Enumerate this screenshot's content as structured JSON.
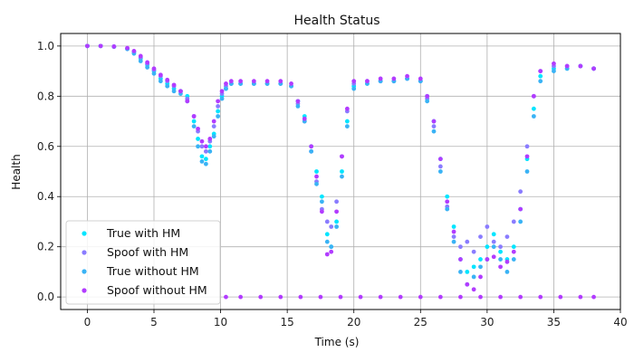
{
  "chart_data": {
    "type": "scatter",
    "title": "Health Status",
    "xlabel": "Time (s)",
    "ylabel": "Health",
    "xlim": [
      -2,
      40
    ],
    "ylim": [
      -0.05,
      1.05
    ],
    "xticks": [
      0,
      5,
      10,
      15,
      20,
      25,
      30,
      35,
      40
    ],
    "yticks": [
      0.0,
      0.2,
      0.4,
      0.6,
      0.8,
      1.0
    ],
    "xtick_labels": [
      "0",
      "5",
      "10",
      "15",
      "20",
      "25",
      "30",
      "35",
      "40"
    ],
    "ytick_labels": [
      "0.0",
      "0.2",
      "0.4",
      "0.6",
      "0.8",
      "1.0"
    ],
    "grid": true,
    "legend_position": "lower-left",
    "series": [
      {
        "name": "True with HM",
        "color": "#00e5ff",
        "x": [
          0,
          1,
          2,
          3,
          3.5,
          4,
          4.5,
          5,
          5.5,
          6,
          6.5,
          7,
          7.5,
          8,
          8.3,
          8.6,
          8.9,
          9.2,
          9.5,
          9.8,
          10.1,
          10.4,
          10.8,
          11.5,
          12.5,
          13.5,
          14.5,
          15.3,
          15.8,
          16.3,
          16.8,
          17.2,
          17.6,
          18.0,
          18.3,
          18.7,
          19.1,
          19.5,
          20,
          21,
          22,
          23,
          24,
          25,
          25.5,
          26,
          26.5,
          27,
          27.5,
          28,
          28.5,
          29,
          29.5,
          30,
          30.5,
          31,
          31.5,
          32,
          32.5,
          33,
          33.5,
          34,
          35,
          36,
          37,
          38
        ],
        "y": [
          1.0,
          1.0,
          0.998,
          0.99,
          0.975,
          0.95,
          0.925,
          0.9,
          0.87,
          0.85,
          0.83,
          0.82,
          0.8,
          0.7,
          0.63,
          0.56,
          0.55,
          0.6,
          0.65,
          0.74,
          0.8,
          0.83,
          0.85,
          0.85,
          0.85,
          0.85,
          0.85,
          0.84,
          0.78,
          0.72,
          0.6,
          0.5,
          0.4,
          0.25,
          0.2,
          0.3,
          0.5,
          0.7,
          0.84,
          0.85,
          0.86,
          0.86,
          0.87,
          0.86,
          0.8,
          0.7,
          0.55,
          0.4,
          0.28,
          0.15,
          0.1,
          0.12,
          0.15,
          0.2,
          0.25,
          0.18,
          0.15,
          0.2,
          0.35,
          0.55,
          0.75,
          0.88,
          0.91,
          0.91,
          0.92,
          0.91
        ]
      },
      {
        "name": "Spoof with HM",
        "color": "#8a7cff",
        "x": [
          0,
          1,
          2,
          3,
          3.5,
          4,
          4.5,
          5,
          5.5,
          6,
          6.5,
          7,
          7.5,
          8,
          8.3,
          8.6,
          8.9,
          9.2,
          9.5,
          9.8,
          10.1,
          10.4,
          10.8,
          11.5,
          12.5,
          13.5,
          14.5,
          15.3,
          15.8,
          16.3,
          16.8,
          17.2,
          17.6,
          18.0,
          18.3,
          18.7,
          19.1,
          19.5,
          20,
          21,
          22,
          23,
          24,
          25,
          25.5,
          26,
          26.5,
          27,
          27.5,
          28,
          28.5,
          29,
          29.5,
          30,
          30.5,
          31,
          31.5,
          32,
          32.5,
          33,
          33.5,
          34,
          35,
          36,
          37,
          38
        ],
        "y": [
          1.0,
          1.0,
          0.998,
          0.99,
          0.978,
          0.955,
          0.93,
          0.905,
          0.88,
          0.86,
          0.84,
          0.82,
          0.79,
          0.72,
          0.66,
          0.6,
          0.58,
          0.62,
          0.68,
          0.76,
          0.81,
          0.84,
          0.85,
          0.85,
          0.85,
          0.85,
          0.85,
          0.84,
          0.77,
          0.7,
          0.58,
          0.46,
          0.35,
          0.3,
          0.28,
          0.38,
          0.56,
          0.74,
          0.85,
          0.86,
          0.86,
          0.86,
          0.87,
          0.86,
          0.79,
          0.68,
          0.52,
          0.36,
          0.24,
          0.2,
          0.22,
          0.18,
          0.24,
          0.28,
          0.22,
          0.2,
          0.24,
          0.3,
          0.42,
          0.6,
          0.8,
          0.9,
          0.92,
          0.92,
          0.92,
          0.91
        ]
      },
      {
        "name": "True without HM",
        "color": "#3ab3f5",
        "x": [
          0,
          1,
          2,
          3,
          3.5,
          4,
          4.5,
          5,
          5.5,
          6,
          6.5,
          7,
          7.5,
          8,
          8.3,
          8.6,
          8.9,
          9.2,
          9.5,
          9.8,
          10.1,
          10.4,
          10.8,
          11.5,
          12.5,
          13.5,
          14.5,
          15.3,
          15.8,
          16.3,
          16.8,
          17.2,
          17.6,
          18.0,
          18.3,
          18.7,
          19.1,
          19.5,
          20,
          21,
          22,
          23,
          24,
          25,
          25.5,
          26,
          26.5,
          27,
          27.5,
          28,
          28.5,
          29,
          29.5,
          30,
          30.5,
          31,
          31.5,
          32,
          32.5,
          33,
          33.5,
          34,
          35,
          36,
          37,
          38
        ],
        "y": [
          1.0,
          1.0,
          0.997,
          0.988,
          0.97,
          0.94,
          0.915,
          0.89,
          0.86,
          0.84,
          0.82,
          0.81,
          0.78,
          0.68,
          0.6,
          0.54,
          0.53,
          0.58,
          0.64,
          0.72,
          0.79,
          0.83,
          0.85,
          0.85,
          0.85,
          0.85,
          0.85,
          0.84,
          0.76,
          0.7,
          0.58,
          0.45,
          0.38,
          0.22,
          0.2,
          0.28,
          0.48,
          0.68,
          0.83,
          0.85,
          0.86,
          0.86,
          0.87,
          0.86,
          0.78,
          0.66,
          0.5,
          0.35,
          0.22,
          0.1,
          0.05,
          0.08,
          0.12,
          0.15,
          0.2,
          0.15,
          0.1,
          0.15,
          0.3,
          0.5,
          0.72,
          0.86,
          0.9,
          0.91,
          0.92,
          0.91
        ]
      },
      {
        "name": "Spoof without HM",
        "color": "#b23cff",
        "x": [
          0,
          1,
          2,
          3,
          3.5,
          4,
          4.5,
          5,
          5.5,
          6,
          6.5,
          7,
          7.5,
          8,
          8.3,
          8.6,
          8.9,
          9.2,
          9.5,
          9.8,
          10.1,
          10.4,
          10.8,
          11.5,
          12.5,
          13.5,
          14.5,
          15.3,
          15.8,
          16.3,
          16.8,
          17.2,
          17.6,
          18.0,
          18.3,
          18.7,
          19.1,
          19.5,
          20,
          21,
          22,
          23,
          24,
          25,
          25.5,
          26,
          26.5,
          27,
          27.5,
          28,
          28.5,
          29,
          29.5,
          30,
          30.5,
          31,
          31.5,
          32,
          32.5,
          33,
          33.5,
          34,
          35,
          36,
          37,
          38,
          10.4,
          11.5,
          13,
          14.5,
          16,
          17.5,
          19,
          20.5,
          22,
          23.5,
          25,
          26.5,
          28,
          29.5,
          31,
          32.5,
          34,
          35.5,
          37,
          38
        ],
        "y": [
          1.0,
          1.0,
          0.998,
          0.992,
          0.98,
          0.96,
          0.935,
          0.91,
          0.885,
          0.865,
          0.845,
          0.82,
          0.78,
          0.72,
          0.67,
          0.62,
          0.6,
          0.63,
          0.7,
          0.78,
          0.82,
          0.85,
          0.86,
          0.86,
          0.86,
          0.86,
          0.86,
          0.85,
          0.78,
          0.71,
          0.6,
          0.48,
          0.34,
          0.17,
          0.18,
          0.34,
          0.56,
          0.75,
          0.86,
          0.86,
          0.87,
          0.87,
          0.88,
          0.87,
          0.8,
          0.7,
          0.55,
          0.38,
          0.26,
          0.15,
          0.05,
          0.03,
          0.08,
          0.15,
          0.16,
          0.12,
          0.14,
          0.18,
          0.35,
          0.56,
          0.8,
          0.9,
          0.93,
          0.92,
          0.92,
          0.91,
          0.0,
          0.0,
          0.0,
          0.0,
          0.0,
          0.0,
          0.0,
          0.0,
          0.0,
          0.0,
          0.0,
          0.0,
          0.0,
          0.0,
          0.0,
          0.0,
          0.0,
          0.0,
          0.0,
          0.0
        ]
      }
    ]
  }
}
